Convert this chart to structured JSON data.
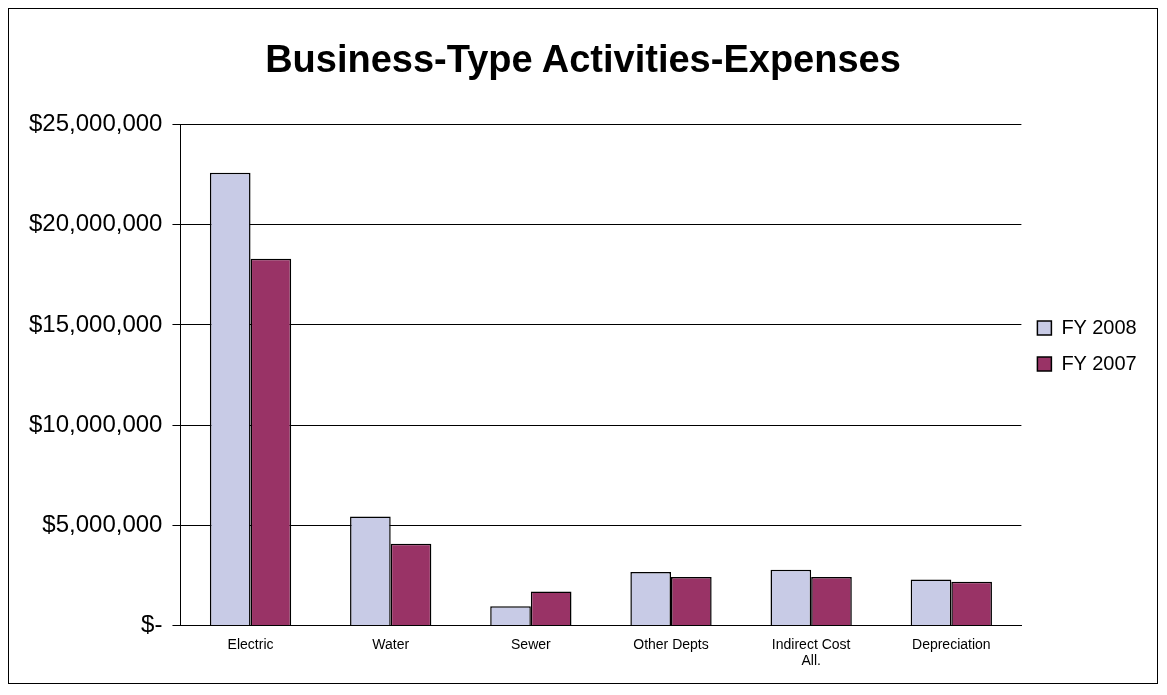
{
  "chart_data": {
    "type": "bar",
    "title": "Business-Type Activities-Expenses",
    "categories": [
      "Electric",
      "Water",
      "Sewer",
      "Other Depts",
      "Indirect Cost All.",
      "Depreciation"
    ],
    "series": [
      {
        "name": "FY 2008",
        "color": "#c8cbe6",
        "values": [
          22600000,
          5440000,
          960000,
          2670000,
          2780000,
          2290000
        ]
      },
      {
        "name": "FY 2007",
        "color": "#993366",
        "values": [
          18300000,
          4070000,
          1690000,
          2420000,
          2420000,
          2180000
        ]
      }
    ],
    "ylim": [
      0,
      25000000
    ],
    "yticks": [
      {
        "value": 0,
        "label": "$-"
      },
      {
        "value": 5000000,
        "label": "$5,000,000"
      },
      {
        "value": 10000000,
        "label": "$10,000,000"
      },
      {
        "value": 15000000,
        "label": "$15,000,000"
      },
      {
        "value": 20000000,
        "label": "$20,000,000"
      },
      {
        "value": 25000000,
        "label": "$25,000,000"
      }
    ],
    "grid": "y",
    "legend": "right"
  }
}
